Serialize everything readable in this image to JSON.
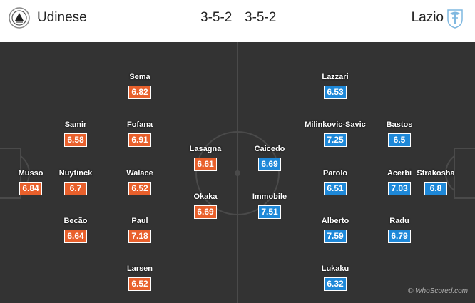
{
  "header": {
    "home_team": "Udinese",
    "home_formation": "3-5-2",
    "away_formation": "3-5-2",
    "away_team": "Lazio",
    "home_crest_icon": "udinese-crest-icon",
    "away_crest_icon": "lazio-eagle-crest-icon"
  },
  "colors": {
    "home_rating": "#e8602c",
    "away_rating": "#1e88d8",
    "pitch": "#333333",
    "lines": "#4a4a4a"
  },
  "home_players": [
    {
      "name": "Musso",
      "rating": "6.84"
    },
    {
      "name": "Samir",
      "rating": "6.58"
    },
    {
      "name": "Nuytinck",
      "rating": "6.7"
    },
    {
      "name": "Becão",
      "rating": "6.64"
    },
    {
      "name": "Sema",
      "rating": "6.82"
    },
    {
      "name": "Fofana",
      "rating": "6.91"
    },
    {
      "name": "Walace",
      "rating": "6.52"
    },
    {
      "name": "Paul",
      "rating": "7.18"
    },
    {
      "name": "Larsen",
      "rating": "6.52"
    },
    {
      "name": "Lasagna",
      "rating": "6.61"
    },
    {
      "name": "Okaka",
      "rating": "6.69"
    }
  ],
  "away_players": [
    {
      "name": "Caicedo",
      "rating": "6.69"
    },
    {
      "name": "Immobile",
      "rating": "7.51"
    },
    {
      "name": "Lazzari",
      "rating": "6.53"
    },
    {
      "name": "Milinkovic-Savic",
      "rating": "7.25"
    },
    {
      "name": "Parolo",
      "rating": "6.51"
    },
    {
      "name": "Alberto",
      "rating": "7.59"
    },
    {
      "name": "Lukaku",
      "rating": "6.32"
    },
    {
      "name": "Bastos",
      "rating": "6.5"
    },
    {
      "name": "Acerbi",
      "rating": "7.03"
    },
    {
      "name": "Radu",
      "rating": "6.79"
    },
    {
      "name": "Strakosha",
      "rating": "6.8"
    }
  ],
  "credit": "© WhoScored.com"
}
